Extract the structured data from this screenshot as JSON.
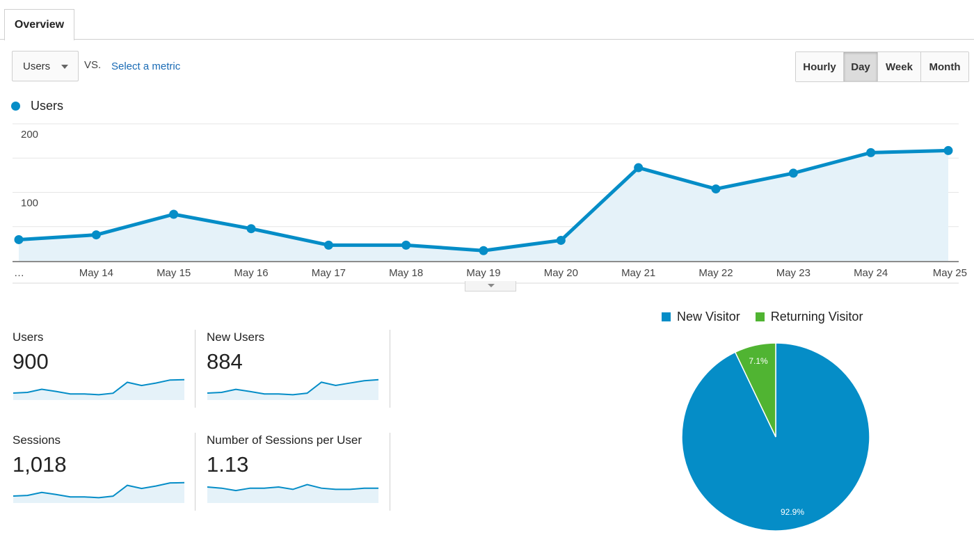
{
  "tabs": [
    {
      "label": "Overview",
      "active": true
    }
  ],
  "controls": {
    "metric_select": "Users",
    "vs_label": "VS.",
    "select_metric_link": "Select a metric",
    "periods": [
      {
        "label": "Hourly",
        "active": false
      },
      {
        "label": "Day",
        "active": true
      },
      {
        "label": "Week",
        "active": false
      },
      {
        "label": "Month",
        "active": false
      }
    ]
  },
  "colors": {
    "primary": "#058dc7",
    "secondary": "#50b432",
    "area_fill": "#e5f2f9",
    "link": "#1a6bb5"
  },
  "chart_data": [
    {
      "type": "area",
      "series": [
        {
          "name": "Users",
          "values": [
            31,
            38,
            68,
            47,
            23,
            23,
            15,
            30,
            136,
            105,
            128,
            158,
            161
          ]
        }
      ],
      "categories": [
        "…",
        "May 14",
        "May 15",
        "May 16",
        "May 17",
        "May 18",
        "May 19",
        "May 20",
        "May 21",
        "May 22",
        "May 23",
        "May 24",
        "May 25"
      ],
      "y_ticks": [
        "200",
        "100"
      ],
      "ylim": [
        0,
        200
      ],
      "grid": true,
      "legend": "top-left"
    },
    {
      "type": "pie",
      "legend": "top",
      "slices": [
        {
          "name": "New Visitor",
          "value": 92.9,
          "label": "92.9%"
        },
        {
          "name": "Returning Visitor",
          "value": 7.1,
          "label": "7.1%"
        }
      ]
    }
  ],
  "scorecards": [
    {
      "label": "Users",
      "value": "900",
      "spark": [
        31,
        38,
        68,
        47,
        23,
        23,
        15,
        30,
        136,
        105,
        128,
        158,
        161
      ]
    },
    {
      "label": "New Users",
      "value": "884",
      "spark": [
        30,
        37,
        66,
        45,
        22,
        22,
        14,
        29,
        134,
        103,
        126,
        148,
        158
      ]
    },
    {
      "label": "Sessions",
      "value": "1,018",
      "spark": [
        35,
        42,
        75,
        52,
        26,
        26,
        17,
        34,
        152,
        118,
        144,
        178,
        181
      ]
    },
    {
      "label": "Number of Sessions per User",
      "value": "1.13",
      "spark": [
        1.13,
        1.12,
        1.1,
        1.12,
        1.12,
        1.13,
        1.11,
        1.15,
        1.12,
        1.11,
        1.11,
        1.12,
        1.12
      ]
    }
  ]
}
